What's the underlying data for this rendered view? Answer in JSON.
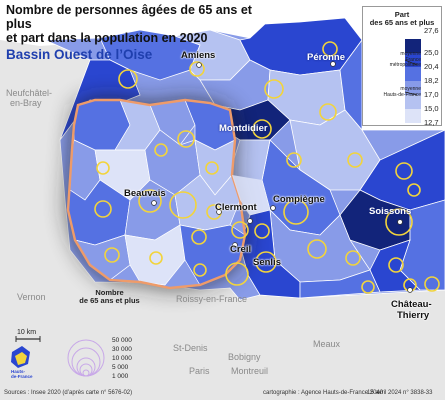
{
  "title": {
    "line1": "Nombre de personnes âgées de 65 ans et plus",
    "line2": "et part dans la population en 2020",
    "subtitle": "Bassin Ouest de l’Oise"
  },
  "legend": {
    "title_line1": "Part",
    "title_line2": "des 65 ans et plus",
    "ticks": [
      "27,6",
      "25,0",
      "20,4",
      "18,2",
      "17,0",
      "15,0",
      "12,7"
    ],
    "classes": [
      "#12247a",
      "#2a46d0",
      "#5571e2",
      "#889be8",
      "#b5c2f1",
      "#dde3f8"
    ],
    "france_note": [
      "moyenne",
      "France",
      "métropolitaine"
    ],
    "hdf_note": [
      "moyenne",
      "Hauts-de-France"
    ]
  },
  "circle_legend": {
    "title_line1": "Nombre",
    "title_line2": "de 65 ans et plus",
    "values": [
      "50 000",
      "30 000",
      "10 000",
      "5 000",
      "1 000"
    ],
    "circle_color": "#f2d43c"
  },
  "cities": {
    "amiens": "Amiens",
    "peronne": "Péronne",
    "montdidier": "Montdidier",
    "beauvais": "Beauvais",
    "clermont": "Clermont",
    "compiegne": "Compiègne",
    "soissons": "Soissons",
    "creil": "Creil",
    "senlis": "Senlis",
    "chateau1": "Château-",
    "chateau2": "Thierry"
  },
  "places": {
    "neufchatel1": "Neufchâtel-",
    "neufchatel2": "en-Bray",
    "vernon": "Vernon",
    "roissy": "Roissy-en-France",
    "stdenis": "St-Denis",
    "bobigny": "Bobigny",
    "meaux": "Meaux",
    "paris": "Paris",
    "montreuil": "Montreuil"
  },
  "scale": "10 km",
  "logo": {
    "line1": "Hauts-",
    "line2": "de-France"
  },
  "footer": {
    "sources": "Sources : Insee 2020 (d’après carte n° 5676-02)",
    "credit": "cartographie : Agence Hauts-de-France 2040",
    "date": "15 avril 2024  n° 3838-33"
  }
}
